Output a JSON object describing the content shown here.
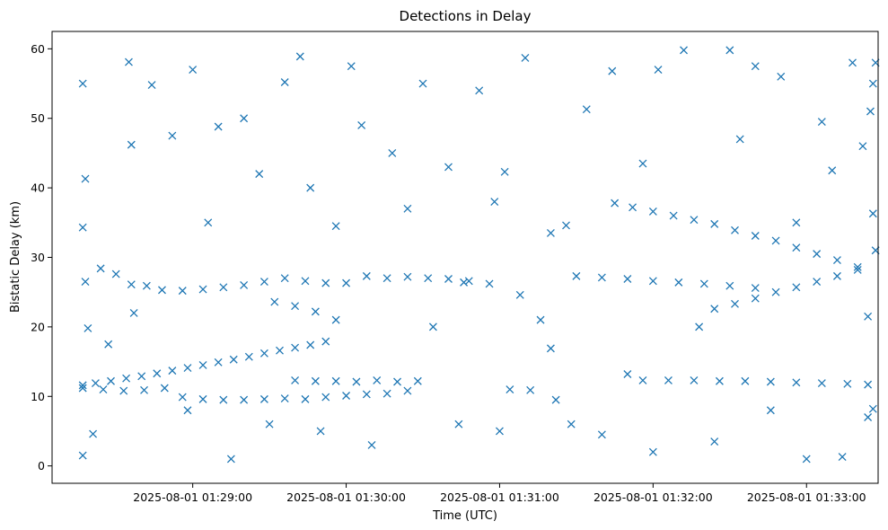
{
  "chart_data": {
    "type": "scatter",
    "title": "Detections in Delay",
    "xlabel": "Time (UTC)",
    "ylabel": "Bistatic Delay (km)",
    "x_unit": "time",
    "xlim": [
      "2025-08-01 01:28:05",
      "2025-08-01 01:33:28"
    ],
    "ylim": [
      -2.5,
      62.5
    ],
    "x_ticks": [
      "2025-08-01 01:29:00",
      "2025-08-01 01:30:00",
      "2025-08-01 01:31:00",
      "2025-08-01 01:32:00",
      "2025-08-01 01:33:00"
    ],
    "y_ticks": [
      0,
      10,
      20,
      30,
      40,
      50,
      60
    ],
    "marker": "x",
    "grid": false,
    "color": "#1f77b4",
    "series": [
      {
        "name": "",
        "points": [
          [
            "2025-08-01 01:28:17",
            11.6
          ],
          [
            "2025-08-01 01:28:22",
            11.9
          ],
          [
            "2025-08-01 01:28:28",
            12.2
          ],
          [
            "2025-08-01 01:28:34",
            12.6
          ],
          [
            "2025-08-01 01:28:40",
            12.9
          ],
          [
            "2025-08-01 01:28:46",
            13.3
          ],
          [
            "2025-08-01 01:28:52",
            13.7
          ],
          [
            "2025-08-01 01:28:58",
            14.1
          ],
          [
            "2025-08-01 01:29:04",
            14.5
          ],
          [
            "2025-08-01 01:29:10",
            14.9
          ],
          [
            "2025-08-01 01:29:16",
            15.3
          ],
          [
            "2025-08-01 01:29:22",
            15.7
          ],
          [
            "2025-08-01 01:29:28",
            16.2
          ],
          [
            "2025-08-01 01:29:34",
            16.6
          ],
          [
            "2025-08-01 01:29:40",
            17.0
          ],
          [
            "2025-08-01 01:29:46",
            17.4
          ],
          [
            "2025-08-01 01:29:52",
            17.9
          ],
          [
            "2025-08-01 01:28:17",
            11.2
          ],
          [
            "2025-08-01 01:28:25",
            11.0
          ],
          [
            "2025-08-01 01:28:33",
            10.8
          ],
          [
            "2025-08-01 01:28:41",
            10.9
          ],
          [
            "2025-08-01 01:28:49",
            11.2
          ],
          [
            "2025-08-01 01:28:18",
            26.5
          ],
          [
            "2025-08-01 01:28:24",
            28.4
          ],
          [
            "2025-08-01 01:28:30",
            27.6
          ],
          [
            "2025-08-01 01:28:36",
            26.1
          ],
          [
            "2025-08-01 01:28:42",
            25.9
          ],
          [
            "2025-08-01 01:28:48",
            25.3
          ],
          [
            "2025-08-01 01:28:56",
            25.2
          ],
          [
            "2025-08-01 01:29:04",
            25.4
          ],
          [
            "2025-08-01 01:29:12",
            25.7
          ],
          [
            "2025-08-01 01:29:20",
            26.0
          ],
          [
            "2025-08-01 01:29:28",
            26.5
          ],
          [
            "2025-08-01 01:29:36",
            27.0
          ],
          [
            "2025-08-01 01:29:44",
            26.6
          ],
          [
            "2025-08-01 01:29:52",
            26.3
          ],
          [
            "2025-08-01 01:30:00",
            26.3
          ],
          [
            "2025-08-01 01:30:08",
            27.3
          ],
          [
            "2025-08-01 01:30:16",
            27.0
          ],
          [
            "2025-08-01 01:30:24",
            27.2
          ],
          [
            "2025-08-01 01:30:32",
            27.0
          ],
          [
            "2025-08-01 01:30:40",
            26.9
          ],
          [
            "2025-08-01 01:30:48",
            26.6
          ],
          [
            "2025-08-01 01:30:56",
            26.2
          ],
          [
            "2025-08-01 01:29:32",
            23.6
          ],
          [
            "2025-08-01 01:29:40",
            23.0
          ],
          [
            "2025-08-01 01:29:48",
            22.2
          ],
          [
            "2025-08-01 01:29:56",
            21.0
          ],
          [
            "2025-08-01 01:28:56",
            9.9
          ],
          [
            "2025-08-01 01:29:04",
            9.6
          ],
          [
            "2025-08-01 01:29:12",
            9.5
          ],
          [
            "2025-08-01 01:29:20",
            9.5
          ],
          [
            "2025-08-01 01:29:28",
            9.6
          ],
          [
            "2025-08-01 01:29:36",
            9.7
          ],
          [
            "2025-08-01 01:29:44",
            9.6
          ],
          [
            "2025-08-01 01:29:52",
            9.9
          ],
          [
            "2025-08-01 01:30:00",
            10.1
          ],
          [
            "2025-08-01 01:30:08",
            10.3
          ],
          [
            "2025-08-01 01:30:16",
            10.4
          ],
          [
            "2025-08-01 01:30:24",
            10.8
          ],
          [
            "2025-08-01 01:29:40",
            12.3
          ],
          [
            "2025-08-01 01:29:48",
            12.2
          ],
          [
            "2025-08-01 01:29:56",
            12.2
          ],
          [
            "2025-08-01 01:30:04",
            12.1
          ],
          [
            "2025-08-01 01:30:12",
            12.3
          ],
          [
            "2025-08-01 01:30:20",
            12.1
          ],
          [
            "2025-08-01 01:30:28",
            12.2
          ],
          [
            "2025-08-01 01:31:30",
            27.3
          ],
          [
            "2025-08-01 01:31:40",
            27.1
          ],
          [
            "2025-08-01 01:31:50",
            26.9
          ],
          [
            "2025-08-01 01:32:00",
            26.6
          ],
          [
            "2025-08-01 01:32:10",
            26.4
          ],
          [
            "2025-08-01 01:32:20",
            26.2
          ],
          [
            "2025-08-01 01:32:30",
            25.9
          ],
          [
            "2025-08-01 01:32:40",
            25.6
          ],
          [
            "2025-08-01 01:31:45",
            37.8
          ],
          [
            "2025-08-01 01:31:52",
            37.2
          ],
          [
            "2025-08-01 01:32:00",
            36.6
          ],
          [
            "2025-08-01 01:32:08",
            36.0
          ],
          [
            "2025-08-01 01:32:16",
            35.4
          ],
          [
            "2025-08-01 01:32:24",
            34.8
          ],
          [
            "2025-08-01 01:32:32",
            33.9
          ],
          [
            "2025-08-01 01:32:40",
            33.1
          ],
          [
            "2025-08-01 01:32:48",
            32.4
          ],
          [
            "2025-08-01 01:32:56",
            31.4
          ],
          [
            "2025-08-01 01:33:04",
            30.5
          ],
          [
            "2025-08-01 01:33:12",
            29.6
          ],
          [
            "2025-08-01 01:33:20",
            28.6
          ],
          [
            "2025-08-01 01:32:24",
            22.6
          ],
          [
            "2025-08-01 01:32:32",
            23.3
          ],
          [
            "2025-08-01 01:32:40",
            24.1
          ],
          [
            "2025-08-01 01:32:48",
            25.0
          ],
          [
            "2025-08-01 01:32:56",
            25.7
          ],
          [
            "2025-08-01 01:33:04",
            26.5
          ],
          [
            "2025-08-01 01:33:12",
            27.3
          ],
          [
            "2025-08-01 01:33:20",
            28.2
          ],
          [
            "2025-08-01 01:31:56",
            12.3
          ],
          [
            "2025-08-01 01:32:06",
            12.3
          ],
          [
            "2025-08-01 01:32:16",
            12.3
          ],
          [
            "2025-08-01 01:32:26",
            12.2
          ],
          [
            "2025-08-01 01:32:36",
            12.2
          ],
          [
            "2025-08-01 01:32:46",
            12.1
          ],
          [
            "2025-08-01 01:32:56",
            12.0
          ],
          [
            "2025-08-01 01:33:06",
            11.9
          ],
          [
            "2025-08-01 01:33:16",
            11.8
          ],
          [
            "2025-08-01 01:33:24",
            11.7
          ],
          [
            "2025-08-01 01:31:08",
            24.6
          ],
          [
            "2025-08-01 01:31:16",
            21.0
          ],
          [
            "2025-08-01 01:31:20",
            16.9
          ],
          [
            "2025-08-01 01:31:12",
            10.9
          ],
          [
            "2025-08-01 01:31:22",
            9.5
          ],
          [
            "2025-08-01 01:31:02",
            42.3
          ],
          [
            "2025-08-01 01:31:26",
            34.6
          ],
          [
            "2025-08-01 01:30:46",
            26.4
          ],
          [
            "2025-08-01 01:31:04",
            11.0
          ],
          [
            "2025-08-01 01:28:17",
            55.0
          ],
          [
            "2025-08-01 01:28:17",
            1.5
          ],
          [
            "2025-08-01 01:28:18",
            41.3
          ],
          [
            "2025-08-01 01:28:17",
            34.3
          ],
          [
            "2025-08-01 01:28:19",
            19.8
          ],
          [
            "2025-08-01 01:28:21",
            4.6
          ],
          [
            "2025-08-01 01:28:27",
            17.5
          ],
          [
            "2025-08-01 01:28:35",
            58.1
          ],
          [
            "2025-08-01 01:28:36",
            46.2
          ],
          [
            "2025-08-01 01:28:37",
            22.0
          ],
          [
            "2025-08-01 01:28:44",
            54.8
          ],
          [
            "2025-08-01 01:28:52",
            47.5
          ],
          [
            "2025-08-01 01:28:58",
            8.0
          ],
          [
            "2025-08-01 01:29:00",
            57.0
          ],
          [
            "2025-08-01 01:29:06",
            35.0
          ],
          [
            "2025-08-01 01:29:10",
            48.8
          ],
          [
            "2025-08-01 01:29:15",
            1.0
          ],
          [
            "2025-08-01 01:29:20",
            50.0
          ],
          [
            "2025-08-01 01:29:26",
            42.0
          ],
          [
            "2025-08-01 01:29:30",
            6.0
          ],
          [
            "2025-08-01 01:29:36",
            55.2
          ],
          [
            "2025-08-01 01:29:42",
            58.9
          ],
          [
            "2025-08-01 01:29:46",
            40.0
          ],
          [
            "2025-08-01 01:29:50",
            5.0
          ],
          [
            "2025-08-01 01:29:56",
            34.5
          ],
          [
            "2025-08-01 01:30:02",
            57.5
          ],
          [
            "2025-08-01 01:30:06",
            49.0
          ],
          [
            "2025-08-01 01:30:10",
            3.0
          ],
          [
            "2025-08-01 01:30:18",
            45.0
          ],
          [
            "2025-08-01 01:30:24",
            37.0
          ],
          [
            "2025-08-01 01:30:30",
            55.0
          ],
          [
            "2025-08-01 01:30:34",
            20.0
          ],
          [
            "2025-08-01 01:30:40",
            43.0
          ],
          [
            "2025-08-01 01:30:44",
            6.0
          ],
          [
            "2025-08-01 01:30:52",
            54.0
          ],
          [
            "2025-08-01 01:30:58",
            38.0
          ],
          [
            "2025-08-01 01:31:00",
            5.0
          ],
          [
            "2025-08-01 01:31:10",
            58.7
          ],
          [
            "2025-08-01 01:31:20",
            33.5
          ],
          [
            "2025-08-01 01:31:28",
            6.0
          ],
          [
            "2025-08-01 01:31:34",
            51.3
          ],
          [
            "2025-08-01 01:31:40",
            4.5
          ],
          [
            "2025-08-01 01:31:44",
            56.8
          ],
          [
            "2025-08-01 01:31:50",
            13.2
          ],
          [
            "2025-08-01 01:31:56",
            43.5
          ],
          [
            "2025-08-01 01:32:00",
            2.0
          ],
          [
            "2025-08-01 01:32:02",
            57.0
          ],
          [
            "2025-08-01 01:32:12",
            59.8
          ],
          [
            "2025-08-01 01:32:18",
            20.0
          ],
          [
            "2025-08-01 01:32:24",
            3.5
          ],
          [
            "2025-08-01 01:32:30",
            59.8
          ],
          [
            "2025-08-01 01:32:34",
            47.0
          ],
          [
            "2025-08-01 01:32:40",
            57.5
          ],
          [
            "2025-08-01 01:32:46",
            8.0
          ],
          [
            "2025-08-01 01:32:50",
            56.0
          ],
          [
            "2025-08-01 01:32:56",
            35.0
          ],
          [
            "2025-08-01 01:33:00",
            1.0
          ],
          [
            "2025-08-01 01:33:06",
            49.5
          ],
          [
            "2025-08-01 01:33:10",
            42.5
          ],
          [
            "2025-08-01 01:33:14",
            1.3
          ],
          [
            "2025-08-01 01:33:18",
            58.0
          ],
          [
            "2025-08-01 01:33:22",
            46.0
          ],
          [
            "2025-08-01 01:33:24",
            21.5
          ],
          [
            "2025-08-01 01:33:26",
            55.0
          ],
          [
            "2025-08-01 01:33:26",
            36.3
          ],
          [
            "2025-08-01 01:33:26",
            8.2
          ],
          [
            "2025-08-01 01:33:27",
            58.0
          ],
          [
            "2025-08-01 01:33:27",
            31.0
          ],
          [
            "2025-08-01 01:33:25",
            51.0
          ],
          [
            "2025-08-01 01:33:24",
            7.0
          ]
        ]
      }
    ]
  }
}
